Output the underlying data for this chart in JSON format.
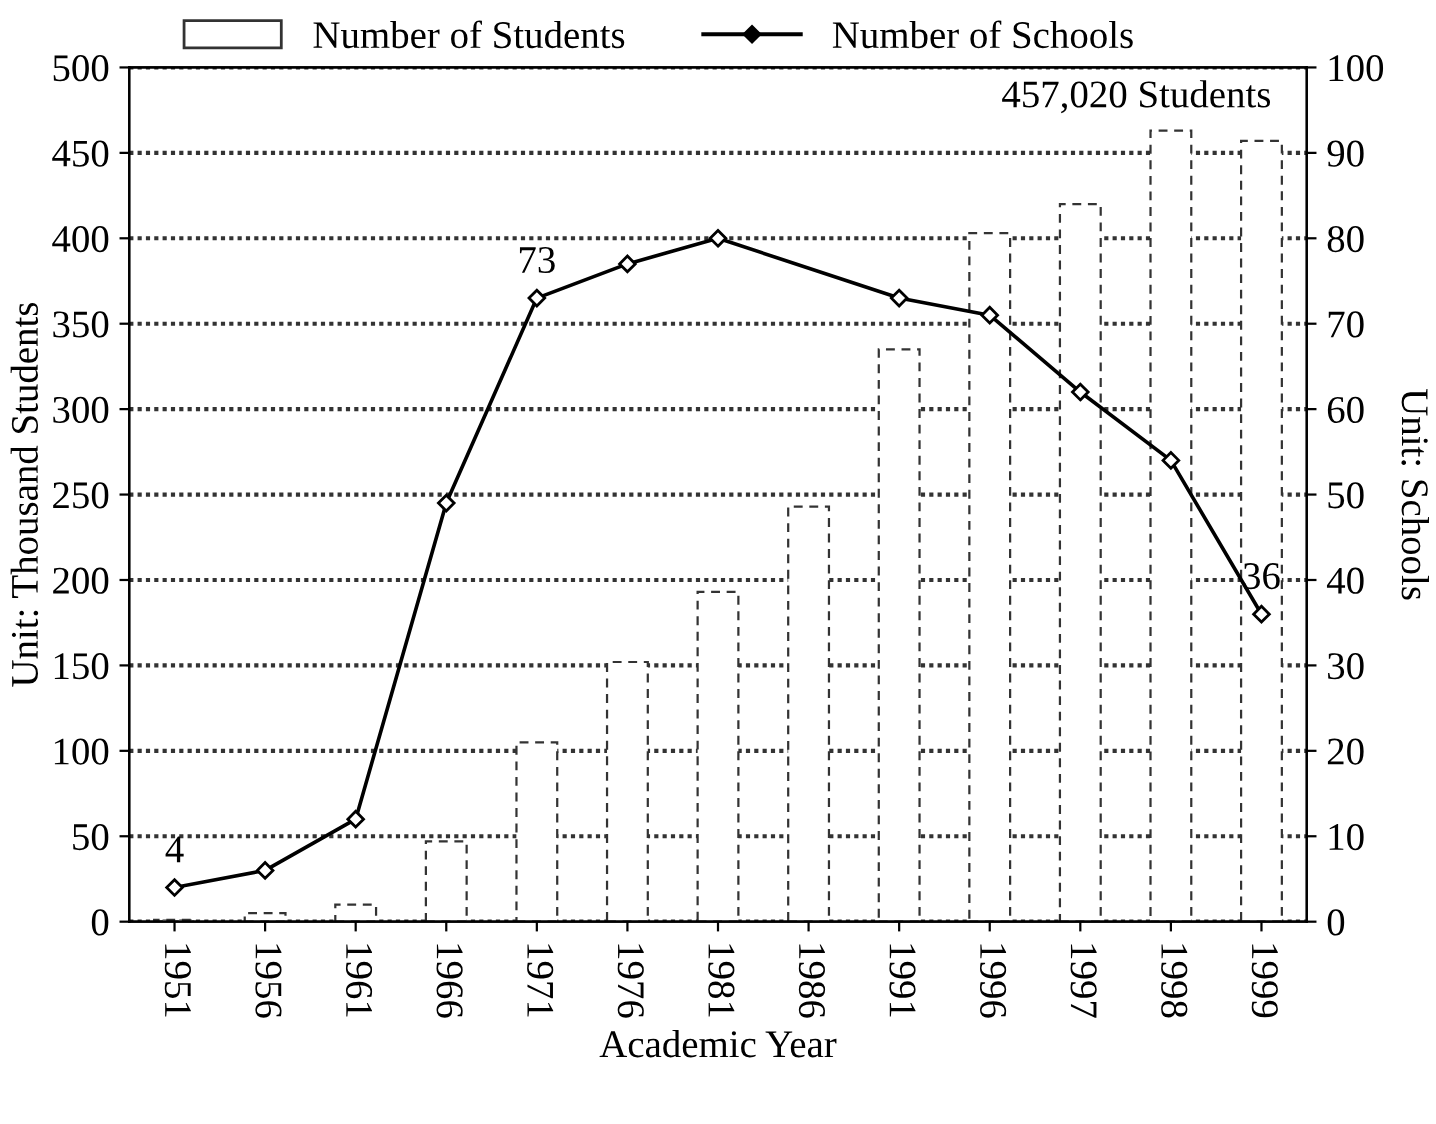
{
  "chart_data": {
    "type": "bar",
    "xlabel": "Academic Year",
    "ylabel": "Unit: Thousand Students",
    "y2label": "Unit: Schools",
    "categories": [
      "1951",
      "1956",
      "1961",
      "1966",
      "1971",
      "1976",
      "1981",
      "1986",
      "1991",
      "1996",
      "1997",
      "1998",
      "1999"
    ],
    "series": [
      {
        "name": "Number of Students",
        "color": "#333333",
        "values": [
          1,
          5,
          10,
          47,
          105,
          152,
          193,
          243,
          335,
          403,
          420,
          463,
          457
        ]
      },
      {
        "name": "Number of Schools",
        "type": "line",
        "axis": "y2",
        "color": "#000000",
        "marker": "diamond",
        "values": [
          4,
          6,
          12,
          49,
          73,
          77,
          80,
          null,
          73,
          71,
          62,
          54,
          36
        ],
        "value_labels": [
          "4",
          null,
          null,
          null,
          "73",
          null,
          null,
          null,
          null,
          null,
          null,
          null,
          "36"
        ]
      }
    ],
    "annotations": [
      "457,020 Students"
    ],
    "ylim": [
      0,
      500
    ],
    "yticks": [
      0,
      50,
      100,
      150,
      200,
      250,
      300,
      350,
      400,
      450,
      500
    ],
    "y2lim": [
      0,
      100
    ],
    "y2ticks": [
      0,
      10,
      20,
      30,
      40,
      50,
      60,
      70,
      80,
      90,
      100
    ],
    "grid": "y",
    "legend": "top"
  }
}
